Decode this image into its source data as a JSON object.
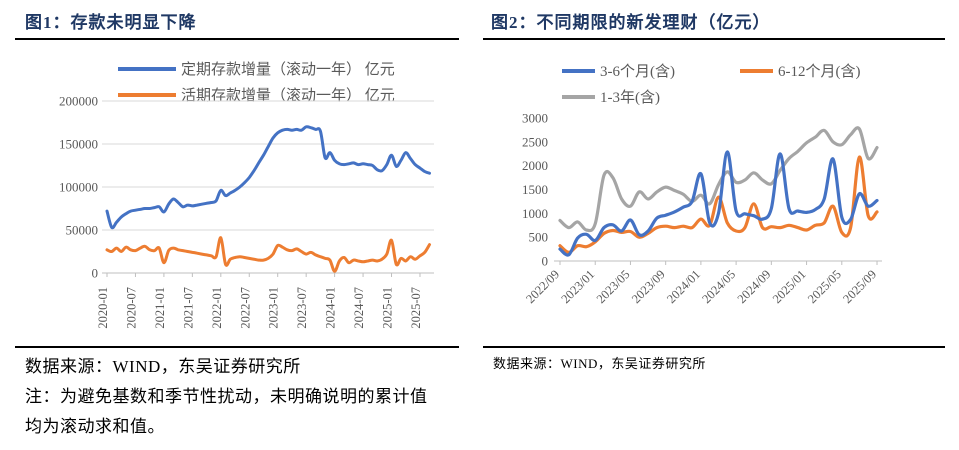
{
  "colors": {
    "blue": "#4472C4",
    "orange": "#ED7D31",
    "gray": "#A5A5A5",
    "title_text": "#1F3864",
    "axis_text": "#595959",
    "gridline": "#D9D9D9",
    "axis_line": "#BFBFBF",
    "rule": "#000000"
  },
  "figure1": {
    "title": "图1：存款未明显下降",
    "legend": [
      "定期存款增量（滚动一年） 亿元",
      "活期存款增量（滚动一年） 亿元"
    ],
    "source": "数据来源：WIND，东吴证券研究所",
    "note_line1": "注：为避免基数和季节性扰动，未明确说明的累计值",
    "note_line2": "均为滚动求和值。"
  },
  "figure2": {
    "title": "图2：不同期限的新发理财（亿元）",
    "legend": [
      "3-6个月(含)",
      "6-12个月(含)",
      "1-3年(含)"
    ],
    "source": "数据来源：WIND，东吴证券研究所"
  },
  "chart_data": [
    {
      "type": "line",
      "title": "图1：存款未明显下降",
      "xlabel": "",
      "ylabel": "",
      "ylim": [
        0,
        200000
      ],
      "yticks": [
        0,
        50000,
        100000,
        150000,
        200000
      ],
      "ytick_labels": [
        "0",
        "50000",
        "100000",
        "150000",
        "200000"
      ],
      "grid": true,
      "legend_position": "top",
      "xlabel_every": 6,
      "xlabel_rotation": -90,
      "categories": [
        "2020-01",
        "2020-02",
        "2020-03",
        "2020-04",
        "2020-05",
        "2020-06",
        "2020-07",
        "2020-08",
        "2020-09",
        "2020-10",
        "2020-11",
        "2020-12",
        "2021-01",
        "2021-02",
        "2021-03",
        "2021-04",
        "2021-05",
        "2021-06",
        "2021-07",
        "2021-08",
        "2021-09",
        "2021-10",
        "2021-11",
        "2021-12",
        "2022-01",
        "2022-02",
        "2022-03",
        "2022-04",
        "2022-05",
        "2022-06",
        "2022-07",
        "2022-08",
        "2022-09",
        "2022-10",
        "2022-11",
        "2022-12",
        "2023-01",
        "2023-02",
        "2023-03",
        "2023-04",
        "2023-05",
        "2023-06",
        "2023-07",
        "2023-08",
        "2023-09",
        "2023-10",
        "2023-11",
        "2023-12",
        "2024-01",
        "2024-02",
        "2024-03",
        "2024-04",
        "2024-05",
        "2024-06",
        "2024-07",
        "2024-08",
        "2024-09",
        "2024-10",
        "2024-11",
        "2024-12",
        "2025-01",
        "2025-02",
        "2025-03",
        "2025-04",
        "2025-05",
        "2025-06",
        "2025-07",
        "2025-08",
        "2025-09"
      ],
      "series": [
        {
          "name": "定期存款增量（滚动一年） 亿元",
          "color": "#4472C4",
          "values": [
            72000,
            53000,
            59000,
            65000,
            69000,
            72000,
            73000,
            74000,
            75000,
            75000,
            76000,
            77000,
            71000,
            80000,
            86000,
            82000,
            77000,
            79000,
            78000,
            79000,
            80000,
            81000,
            82000,
            84000,
            96000,
            90000,
            93000,
            96000,
            100000,
            105000,
            111000,
            119000,
            128000,
            137000,
            147000,
            157000,
            163000,
            166000,
            167000,
            166000,
            167000,
            166000,
            170000,
            169000,
            167000,
            165000,
            134000,
            140000,
            131000,
            127000,
            126000,
            127000,
            128000,
            126000,
            127000,
            126000,
            125000,
            120000,
            119000,
            126000,
            137000,
            124000,
            131000,
            140000,
            133000,
            126000,
            122000,
            118000,
            116000
          ]
        },
        {
          "name": "活期存款增量（滚动一年） 亿元",
          "color": "#ED7D31",
          "values": [
            27000,
            25000,
            29000,
            25000,
            30000,
            27000,
            26000,
            29000,
            31000,
            27000,
            26000,
            29000,
            12000,
            26000,
            29000,
            27000,
            26000,
            25000,
            24000,
            23000,
            22000,
            21000,
            20000,
            19000,
            41000,
            10000,
            16000,
            18000,
            19000,
            18000,
            17000,
            16000,
            15000,
            15000,
            17000,
            22000,
            32000,
            30000,
            27000,
            26000,
            28000,
            25000,
            22000,
            24000,
            21000,
            19000,
            17000,
            15000,
            2000,
            14000,
            18000,
            12000,
            15000,
            14000,
            13000,
            14000,
            15000,
            14000,
            16000,
            22000,
            38000,
            10000,
            17000,
            14000,
            19000,
            16000,
            20000,
            24000,
            33000
          ]
        }
      ]
    },
    {
      "type": "line",
      "title": "图2：不同期限的新发理财（亿元）",
      "xlabel": "",
      "ylabel": "",
      "ylim": [
        0,
        3000
      ],
      "yticks": [
        0,
        500,
        1000,
        1500,
        2000,
        2500,
        3000
      ],
      "ytick_labels": [
        "0",
        "500",
        "1000",
        "1500",
        "2000",
        "2500",
        "3000"
      ],
      "grid": false,
      "legend_position": "top",
      "xlabel_every": 4,
      "xlabel_rotation": -45,
      "categories": [
        "2022/09",
        "2022/10",
        "2022/11",
        "2022/12",
        "2023/01",
        "2023/02",
        "2023/03",
        "2023/04",
        "2023/05",
        "2023/06",
        "2023/07",
        "2023/08",
        "2023/09",
        "2023/10",
        "2023/11",
        "2023/12",
        "2024/01",
        "2024/02",
        "2024/03",
        "2024/04",
        "2024/05",
        "2024/06",
        "2024/07",
        "2024/08",
        "2024/09",
        "2024/10",
        "2024/11",
        "2024/12",
        "2025/01",
        "2025/02",
        "2025/03",
        "2025/04",
        "2025/05",
        "2025/06",
        "2025/07",
        "2025/08",
        "2025/09"
      ],
      "series": [
        {
          "name": "3-6个月(含)",
          "color": "#4472C4",
          "values": [
            250,
            130,
            480,
            560,
            430,
            700,
            760,
            630,
            860,
            550,
            630,
            900,
            960,
            1030,
            1130,
            1250,
            1830,
            800,
            1000,
            2290,
            1050,
            990,
            950,
            880,
            1100,
            2250,
            1100,
            1050,
            1020,
            1080,
            1300,
            2140,
            920,
            870,
            1410,
            1150,
            1270
          ]
        },
        {
          "name": "6-12个月(含)",
          "color": "#ED7D31",
          "values": [
            320,
            180,
            320,
            300,
            400,
            580,
            640,
            600,
            620,
            500,
            580,
            700,
            730,
            700,
            730,
            700,
            880,
            750,
            1340,
            800,
            630,
            700,
            1200,
            700,
            720,
            700,
            750,
            700,
            650,
            750,
            800,
            1150,
            600,
            700,
            2180,
            950,
            1030
          ]
        },
        {
          "name": "1-3年(含)",
          "color": "#A5A5A5",
          "values": [
            850,
            700,
            820,
            650,
            780,
            1800,
            1750,
            1300,
            1150,
            1450,
            1300,
            1450,
            1550,
            1480,
            1400,
            1250,
            1380,
            1200,
            1600,
            1870,
            1650,
            1700,
            1850,
            1700,
            1620,
            1900,
            2150,
            2300,
            2480,
            2600,
            2740,
            2500,
            2440,
            2650,
            2770,
            2150,
            2380
          ]
        }
      ]
    }
  ]
}
